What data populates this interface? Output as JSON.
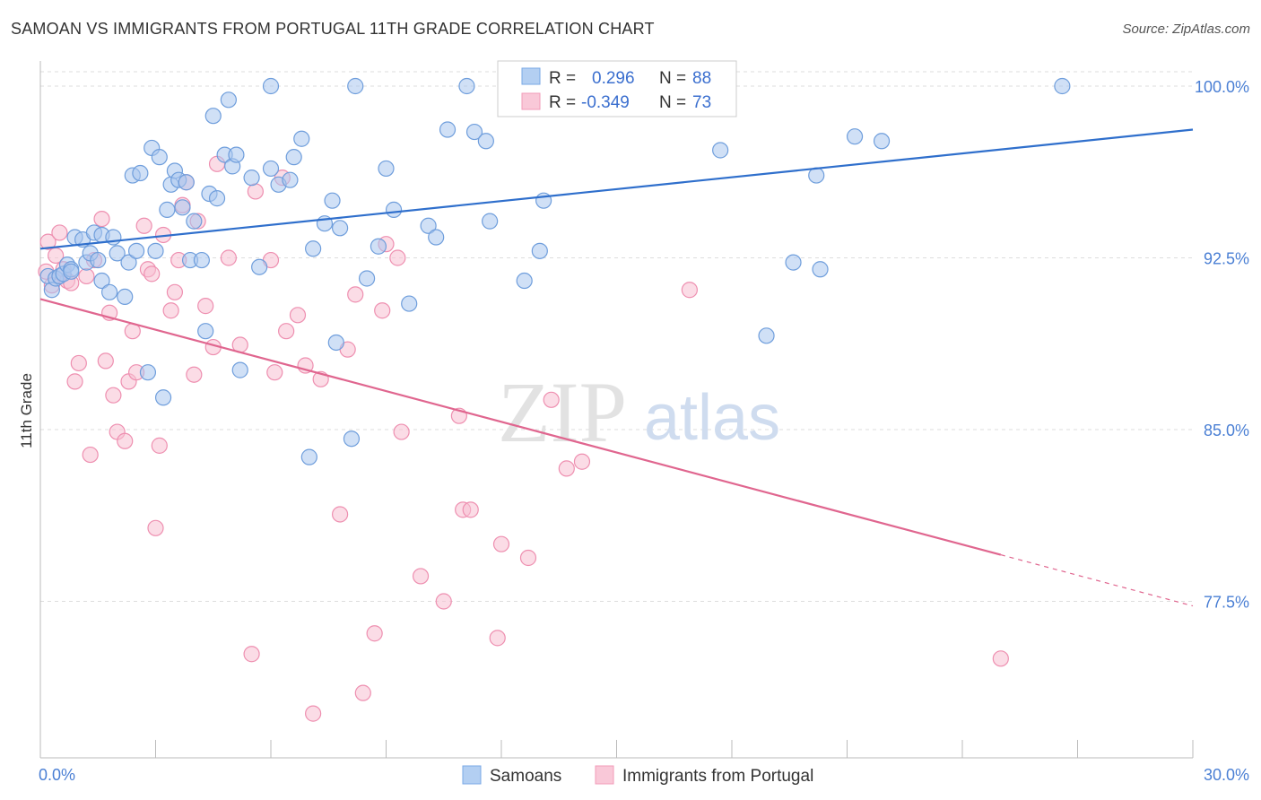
{
  "title": "SAMOAN VS IMMIGRANTS FROM PORTUGAL 11TH GRADE CORRELATION CHART",
  "source": "Source: ZipAtlas.com",
  "watermark": {
    "zip": "ZIP",
    "atlas": "atlas"
  },
  "legend": {
    "r_label": "R =",
    "n_label": "N =",
    "rows": [
      {
        "r": "0.296",
        "n": "88",
        "color": "#7aa8e6"
      },
      {
        "r": "-0.349",
        "n": "73",
        "color": "#f29bb9"
      }
    ]
  },
  "bottom_legend": [
    "Samoans",
    "Immigrants from Portugal"
  ],
  "colors": {
    "blue_fill": "#a9c7ee",
    "blue_stroke": "#6f9edc",
    "blue_line": "#2f6fcc",
    "pink_fill": "#f7c0d2",
    "pink_stroke": "#ee8fb0",
    "pink_line": "#e0668f",
    "grid": "#dddddd",
    "tick_label": "#4a7fd4"
  },
  "chart_data": {
    "type": "scatter",
    "title": "SAMOAN VS IMMIGRANTS FROM PORTUGAL 11TH GRADE CORRELATION CHART",
    "xlabel": "",
    "ylabel": "11th Grade",
    "xlim": [
      0,
      30
    ],
    "ylim": [
      70.0,
      100.5
    ],
    "x_tick_labels": [
      "0.0%",
      "30.0%"
    ],
    "y_ticks": [
      100.0,
      92.5,
      85.0,
      77.5
    ],
    "y_tick_labels": [
      "100.0%",
      "92.5%",
      "85.0%",
      "77.5%"
    ],
    "grid": true,
    "legend_position": "top-center",
    "series": [
      {
        "name": "Samoans",
        "r": 0.296,
        "n": 88,
        "trend": {
          "x": [
            0,
            30
          ],
          "y": [
            92.9,
            98.1
          ],
          "dashed_from": null
        },
        "points": [
          [
            0.2,
            91.7
          ],
          [
            0.3,
            91.1
          ],
          [
            0.4,
            91.6
          ],
          [
            0.5,
            91.7
          ],
          [
            0.6,
            91.8
          ],
          [
            0.7,
            92.2
          ],
          [
            0.8,
            92.0
          ],
          [
            0.9,
            93.4
          ],
          [
            1.1,
            93.3
          ],
          [
            1.2,
            92.3
          ],
          [
            1.3,
            92.7
          ],
          [
            1.4,
            93.6
          ],
          [
            1.6,
            93.5
          ],
          [
            1.6,
            91.5
          ],
          [
            1.8,
            91.0
          ],
          [
            1.9,
            93.4
          ],
          [
            2.0,
            92.7
          ],
          [
            2.2,
            90.8
          ],
          [
            2.3,
            92.3
          ],
          [
            2.4,
            96.1
          ],
          [
            2.5,
            92.8
          ],
          [
            2.6,
            96.2
          ],
          [
            2.8,
            87.5
          ],
          [
            2.9,
            97.3
          ],
          [
            3.0,
            92.8
          ],
          [
            3.1,
            96.9
          ],
          [
            3.2,
            86.4
          ],
          [
            3.3,
            94.6
          ],
          [
            3.4,
            95.7
          ],
          [
            3.5,
            96.3
          ],
          [
            3.6,
            95.9
          ],
          [
            3.7,
            94.7
          ],
          [
            3.8,
            95.8
          ],
          [
            3.9,
            92.4
          ],
          [
            4.0,
            94.1
          ],
          [
            4.2,
            92.4
          ],
          [
            4.3,
            89.3
          ],
          [
            4.4,
            95.3
          ],
          [
            4.5,
            98.7
          ],
          [
            4.6,
            95.1
          ],
          [
            4.8,
            97.0
          ],
          [
            4.9,
            99.4
          ],
          [
            5.0,
            96.5
          ],
          [
            5.1,
            97.0
          ],
          [
            5.2,
            87.6
          ],
          [
            5.5,
            96.0
          ],
          [
            5.7,
            92.1
          ],
          [
            6.0,
            96.4
          ],
          [
            6.0,
            100.0
          ],
          [
            6.2,
            95.7
          ],
          [
            6.5,
            95.9
          ],
          [
            6.6,
            96.9
          ],
          [
            6.8,
            97.7
          ],
          [
            7.0,
            83.8
          ],
          [
            7.1,
            92.9
          ],
          [
            7.4,
            94.0
          ],
          [
            7.6,
            95.0
          ],
          [
            7.7,
            88.8
          ],
          [
            7.8,
            93.8
          ],
          [
            8.1,
            84.6
          ],
          [
            8.2,
            100.0
          ],
          [
            8.5,
            91.6
          ],
          [
            8.8,
            93.0
          ],
          [
            9.0,
            96.4
          ],
          [
            9.2,
            94.6
          ],
          [
            9.6,
            90.5
          ],
          [
            10.1,
            93.9
          ],
          [
            10.3,
            93.4
          ],
          [
            10.6,
            98.1
          ],
          [
            11.1,
            100.0
          ],
          [
            11.3,
            98.0
          ],
          [
            11.6,
            97.6
          ],
          [
            11.7,
            94.1
          ],
          [
            12.6,
            91.5
          ],
          [
            13.0,
            92.8
          ],
          [
            13.1,
            95.0
          ],
          [
            14.0,
            100.0
          ],
          [
            15.3,
            100.0
          ],
          [
            17.7,
            97.2
          ],
          [
            18.9,
            89.1
          ],
          [
            19.6,
            92.3
          ],
          [
            20.2,
            96.1
          ],
          [
            20.3,
            92.0
          ],
          [
            21.2,
            97.8
          ],
          [
            21.9,
            97.6
          ],
          [
            26.6,
            100.0
          ],
          [
            0.8,
            91.9
          ],
          [
            1.5,
            92.4
          ]
        ]
      },
      {
        "name": "Immigrants from Portugal",
        "r": -0.349,
        "n": 73,
        "trend": {
          "x": [
            0,
            30
          ],
          "y": [
            90.7,
            77.3
          ],
          "dashed_from": 25.0
        },
        "points": [
          [
            0.15,
            91.9
          ],
          [
            0.2,
            93.2
          ],
          [
            0.3,
            91.3
          ],
          [
            0.4,
            92.6
          ],
          [
            0.5,
            93.6
          ],
          [
            0.6,
            92.0
          ],
          [
            0.7,
            91.5
          ],
          [
            0.8,
            91.4
          ],
          [
            0.9,
            87.1
          ],
          [
            1.0,
            87.9
          ],
          [
            1.2,
            91.7
          ],
          [
            1.3,
            83.9
          ],
          [
            1.4,
            92.4
          ],
          [
            1.6,
            94.2
          ],
          [
            1.7,
            88.0
          ],
          [
            1.8,
            90.1
          ],
          [
            1.9,
            86.5
          ],
          [
            2.0,
            84.9
          ],
          [
            2.2,
            84.5
          ],
          [
            2.3,
            87.1
          ],
          [
            2.4,
            89.3
          ],
          [
            2.5,
            87.5
          ],
          [
            2.7,
            93.9
          ],
          [
            2.8,
            92.0
          ],
          [
            2.9,
            91.8
          ],
          [
            3.0,
            80.7
          ],
          [
            3.1,
            84.3
          ],
          [
            3.2,
            93.5
          ],
          [
            3.4,
            90.2
          ],
          [
            3.5,
            91.0
          ],
          [
            3.6,
            92.4
          ],
          [
            3.7,
            94.8
          ],
          [
            3.8,
            95.8
          ],
          [
            4.0,
            87.4
          ],
          [
            4.1,
            94.1
          ],
          [
            4.3,
            90.4
          ],
          [
            4.5,
            88.6
          ],
          [
            4.6,
            96.6
          ],
          [
            4.9,
            92.5
          ],
          [
            5.2,
            88.7
          ],
          [
            5.5,
            75.2
          ],
          [
            5.6,
            95.4
          ],
          [
            6.0,
            92.4
          ],
          [
            6.1,
            87.5
          ],
          [
            6.3,
            96.0
          ],
          [
            6.4,
            89.3
          ],
          [
            6.7,
            90.0
          ],
          [
            6.9,
            87.8
          ],
          [
            7.1,
            72.6
          ],
          [
            7.3,
            87.2
          ],
          [
            7.8,
            81.3
          ],
          [
            8.0,
            88.5
          ],
          [
            8.2,
            90.9
          ],
          [
            8.4,
            73.5
          ],
          [
            8.7,
            76.1
          ],
          [
            8.9,
            90.2
          ],
          [
            9.0,
            93.1
          ],
          [
            9.3,
            92.5
          ],
          [
            9.4,
            84.9
          ],
          [
            9.9,
            78.6
          ],
          [
            10.5,
            77.5
          ],
          [
            10.9,
            85.6
          ],
          [
            11.0,
            81.5
          ],
          [
            11.2,
            81.5
          ],
          [
            11.9,
            75.9
          ],
          [
            12.0,
            80.0
          ],
          [
            12.7,
            79.4
          ],
          [
            13.3,
            86.3
          ],
          [
            13.7,
            83.3
          ],
          [
            14.1,
            83.6
          ],
          [
            16.1,
            100.0
          ],
          [
            16.9,
            91.1
          ],
          [
            25.0,
            75.0
          ]
        ]
      }
    ]
  }
}
